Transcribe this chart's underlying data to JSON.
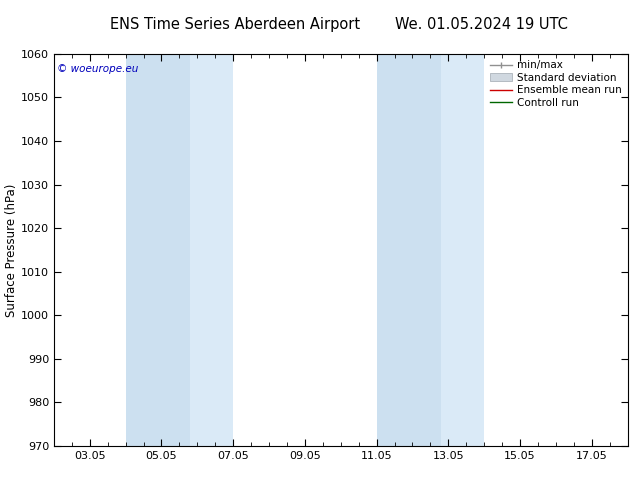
{
  "title_left": "ENS Time Series Aberdeen Airport",
  "title_right": "We. 01.05.2024 19 UTC",
  "ylabel": "Surface Pressure (hPa)",
  "ylim": [
    970,
    1060
  ],
  "yticks": [
    970,
    980,
    990,
    1000,
    1010,
    1020,
    1030,
    1040,
    1050,
    1060
  ],
  "xtick_labels": [
    "03.05",
    "05.05",
    "07.05",
    "09.05",
    "11.05",
    "13.05",
    "15.05",
    "17.05"
  ],
  "xtick_positions": [
    2,
    4,
    6,
    8,
    10,
    12,
    14,
    16
  ],
  "xlim": [
    1,
    17
  ],
  "shaded_bands": [
    {
      "x_start": 3.0,
      "x_end": 4.8,
      "color": "#cce0f0",
      "alpha": 1.0
    },
    {
      "x_start": 4.8,
      "x_end": 6.0,
      "color": "#daeaf7",
      "alpha": 1.0
    },
    {
      "x_start": 10.0,
      "x_end": 11.8,
      "color": "#cce0f0",
      "alpha": 1.0
    },
    {
      "x_start": 11.8,
      "x_end": 13.0,
      "color": "#daeaf7",
      "alpha": 1.0
    }
  ],
  "legend_entries": [
    {
      "label": "min/max",
      "color": "#909090",
      "lw": 1.0
    },
    {
      "label": "Standard deviation",
      "color": "#c8c8c8",
      "lw": 5
    },
    {
      "label": "Ensemble mean run",
      "color": "#cc0000",
      "lw": 1.0
    },
    {
      "label": "Controll run",
      "color": "#006600",
      "lw": 1.0
    }
  ],
  "copyright_text": "© woeurope.eu",
  "copyright_color": "#0000bb",
  "background_color": "#ffffff",
  "axes_bg_color": "#ffffff",
  "title_fontsize": 10.5,
  "label_fontsize": 8.5,
  "tick_fontsize": 8,
  "legend_fontsize": 7.5
}
